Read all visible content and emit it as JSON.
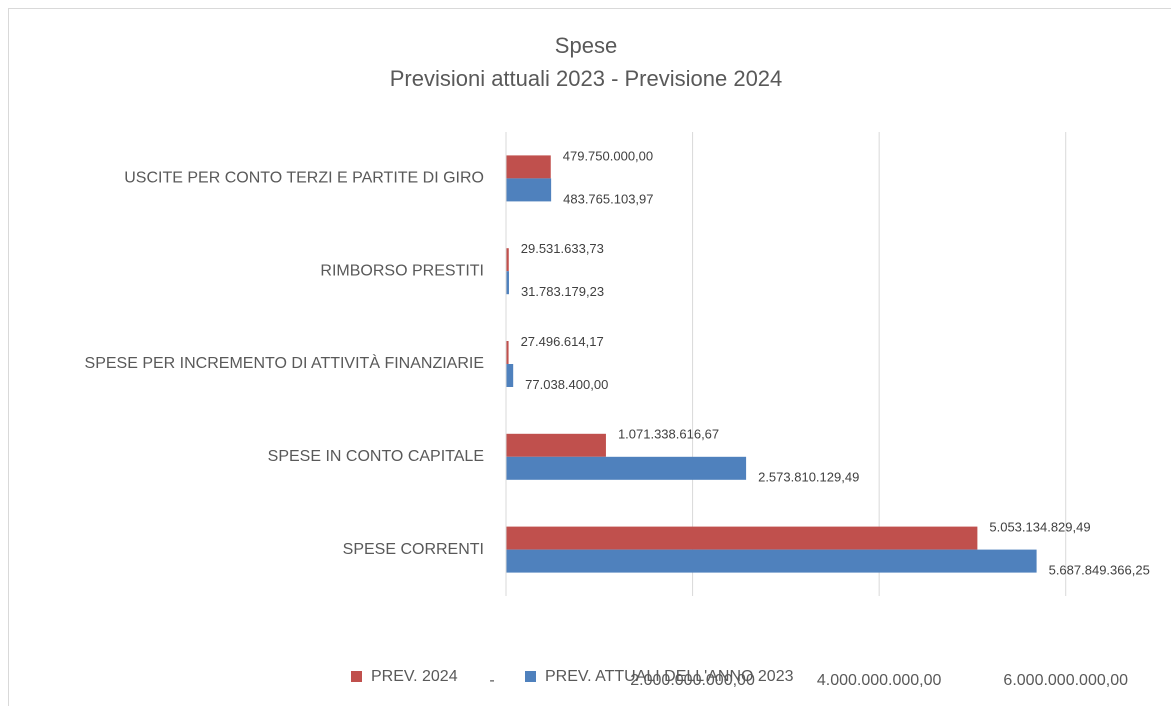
{
  "chart_data": {
    "type": "hbar",
    "title": "Spese",
    "subtitle": "Previsioni attuali 2023 - Previsione 2024",
    "categories": [
      "USCITE PER CONTO TERZI E PARTITE DI GIRO",
      "RIMBORSO PRESTITI",
      "SPESE PER INCREMENTO DI ATTIVITÀ FINANZIARIE",
      "SPESE IN CONTO CAPITALE",
      "SPESE CORRENTI"
    ],
    "series": [
      {
        "name": "PREV. 2024",
        "color": "#c0504d",
        "values": [
          479750000,
          29531633.73,
          27496614.17,
          1071338616.67,
          5053134829.49
        ],
        "value_labels": [
          "479.750.000,00",
          "29.531.633,73",
          "27.496.614,17",
          "1.071.338.616,67",
          "5.053.134.829,49"
        ]
      },
      {
        "name": "PREV. ATTUALI DELL'ANNO 2023",
        "color": "#4f81bd",
        "values": [
          483765103.97,
          31783179.23,
          77038400,
          2573810129.49,
          5687849366.25
        ],
        "value_labels": [
          "483.765.103,97",
          "31.783.179,23",
          "77.038.400,00",
          "2.573.810.129,49",
          "5.687.849.366,25"
        ]
      }
    ],
    "xlim": [
      0,
      7000000000
    ],
    "xticks": [
      {
        "value": 0,
        "label": "-"
      },
      {
        "value": 2000000000,
        "label": "2.000.000.000,00"
      },
      {
        "value": 4000000000,
        "label": "4.000.000.000,00"
      },
      {
        "value": 6000000000,
        "label": "6.000.000.000,00"
      }
    ],
    "grid": true,
    "legend": "bottom"
  }
}
